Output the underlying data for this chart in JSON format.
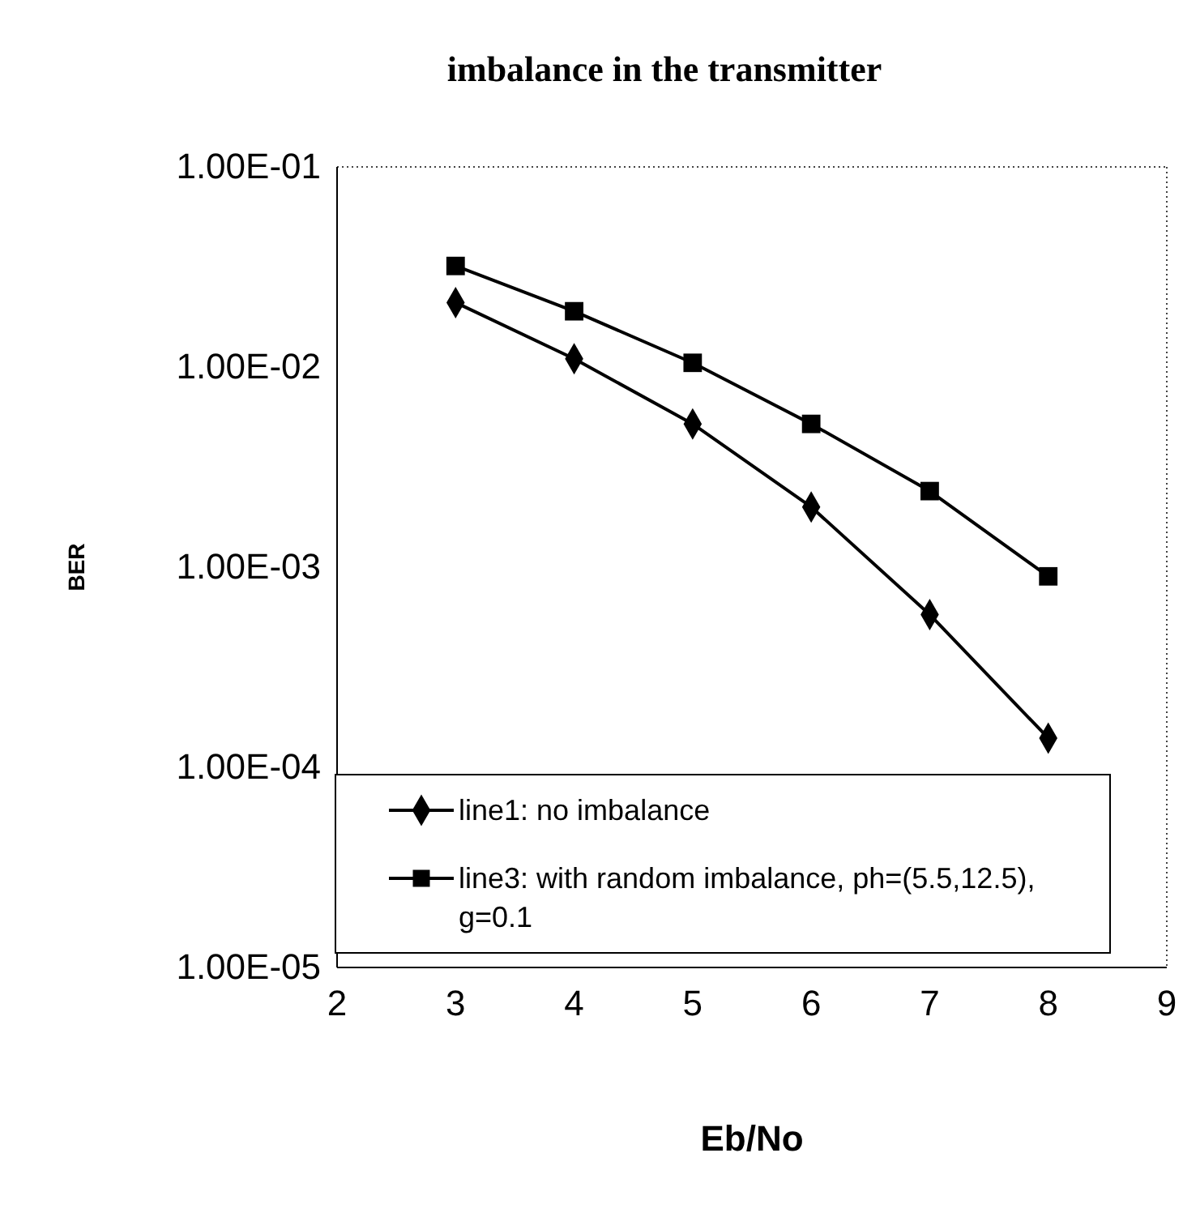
{
  "chart_data": {
    "type": "line",
    "title": "imbalance in the transmitter",
    "xlabel": "Eb/No",
    "ylabel": "BER",
    "x": [
      3,
      4,
      5,
      6,
      7,
      8
    ],
    "series": [
      {
        "name": "line1: no imbalance",
        "color": "#000000",
        "marker": "diamond",
        "values": [
          0.021,
          0.011,
          0.0052,
          0.002,
          0.00058,
          0.00014
        ]
      },
      {
        "name": "line3: with random imbalance, ph=(5.5,12.5), g=0.1",
        "color": "#000000",
        "marker": "square",
        "values": [
          0.032,
          0.019,
          0.0105,
          0.0052,
          0.0024,
          0.0009
        ]
      }
    ],
    "log": "y",
    "xlim": [
      2,
      9
    ],
    "xticks": [
      2,
      3,
      4,
      5,
      6,
      7,
      8,
      9
    ],
    "ylim": [
      1e-05,
      0.1
    ],
    "yticks": [
      {
        "value": 1e-05,
        "label": "1.00E-05"
      },
      {
        "value": 0.0001,
        "label": "1.00E-04"
      },
      {
        "value": 0.001,
        "label": "1.00E-03"
      },
      {
        "value": 0.01,
        "label": "1.00E-02"
      },
      {
        "value": 0.1,
        "label": "1.00E-01"
      }
    ],
    "grid": false,
    "legend": "bottom left",
    "line_style": "solid"
  }
}
